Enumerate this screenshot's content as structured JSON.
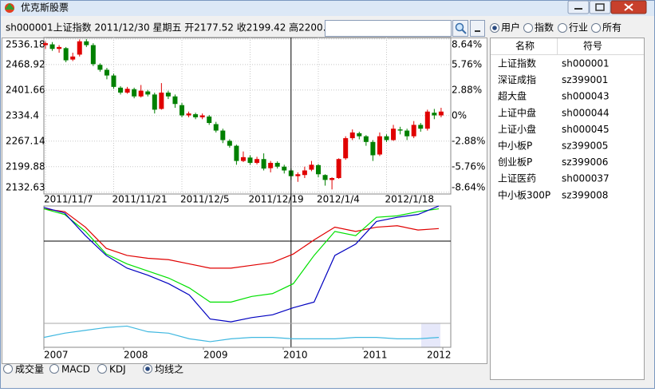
{
  "window": {
    "title": "优克斯股票"
  },
  "toolbar": {
    "quote": "sh000001上证指数  2011/12/30  星期五  开2177.52  收2199.42  高2200."
  },
  "filter": {
    "options": [
      "用户",
      "指数",
      "行业",
      "所有"
    ],
    "selected": 0
  },
  "list": {
    "columns": [
      "名称",
      "符号"
    ],
    "rows": [
      [
        "上证指数",
        "sh000001"
      ],
      [
        "深证成指",
        "sz399001"
      ],
      [
        "超大盘",
        "sh000043"
      ],
      [
        "上证中盘",
        "sh000044"
      ],
      [
        "上证小盘",
        "sh000045"
      ],
      [
        "中小板P",
        "sz399005"
      ],
      [
        "创业板P",
        "sz399006"
      ],
      [
        "上证医药",
        "sh000037"
      ],
      [
        "中小板300P",
        "sz399008"
      ]
    ]
  },
  "indicator": {
    "options": [
      "成交量",
      "MACD",
      "KDJ",
      "均线之"
    ],
    "selected": 3
  },
  "chart_data": [
    {
      "type": "candlestick",
      "up_color": "#e00000",
      "down_color": "#008000",
      "candles": [
        [
          2520,
          2530,
          2510,
          2525
        ],
        [
          2522,
          2528,
          2505,
          2510
        ],
        [
          2510,
          2520,
          2500,
          2515
        ],
        [
          2512,
          2515,
          2475,
          2480
        ],
        [
          2482,
          2500,
          2478,
          2490
        ],
        [
          2495,
          2535,
          2490,
          2530
        ],
        [
          2530,
          2536,
          2515,
          2520
        ],
        [
          2520,
          2525,
          2465,
          2470
        ],
        [
          2468,
          2472,
          2450,
          2455
        ],
        [
          2455,
          2460,
          2430,
          2440
        ],
        [
          2440,
          2445,
          2405,
          2410
        ],
        [
          2408,
          2412,
          2390,
          2395
        ],
        [
          2395,
          2410,
          2392,
          2405
        ],
        [
          2404,
          2408,
          2380,
          2385
        ],
        [
          2385,
          2415,
          2382,
          2400
        ],
        [
          2398,
          2402,
          2385,
          2390
        ],
        [
          2390,
          2395,
          2340,
          2350
        ],
        [
          2352,
          2420,
          2350,
          2395
        ],
        [
          2395,
          2400,
          2378,
          2385
        ],
        [
          2385,
          2390,
          2355,
          2365
        ],
        [
          2362,
          2368,
          2330,
          2335
        ],
        [
          2335,
          2345,
          2330,
          2340
        ],
        [
          2338,
          2342,
          2325,
          2330
        ],
        [
          2330,
          2340,
          2325,
          2335
        ],
        [
          2332,
          2336,
          2310,
          2315
        ],
        [
          2312,
          2318,
          2290,
          2295
        ],
        [
          2295,
          2300,
          2262,
          2270
        ],
        [
          2268,
          2272,
          2250,
          2255
        ],
        [
          2255,
          2258,
          2205,
          2215
        ],
        [
          2215,
          2240,
          2212,
          2225
        ],
        [
          2224,
          2230,
          2205,
          2210
        ],
        [
          2210,
          2226,
          2206,
          2220
        ],
        [
          2220,
          2235,
          2190,
          2195
        ],
        [
          2196,
          2215,
          2185,
          2210
        ],
        [
          2210,
          2214,
          2195,
          2200
        ],
        [
          2200,
          2205,
          2182,
          2190
        ],
        [
          2190,
          2195,
          2165,
          2175
        ],
        [
          2175,
          2185,
          2160,
          2180
        ],
        [
          2178,
          2200,
          2170,
          2190
        ],
        [
          2192,
          2215,
          2188,
          2205
        ],
        [
          2204,
          2207,
          2172,
          2180
        ],
        [
          2178,
          2180,
          2150,
          2165
        ],
        [
          2165,
          2172,
          2140,
          2170
        ],
        [
          2170,
          2222,
          2168,
          2220
        ],
        [
          2222,
          2280,
          2218,
          2275
        ],
        [
          2275,
          2298,
          2270,
          2290
        ],
        [
          2288,
          2292,
          2272,
          2280
        ],
        [
          2280,
          2283,
          2255,
          2265
        ],
        [
          2265,
          2270,
          2215,
          2230
        ],
        [
          2232,
          2290,
          2228,
          2280
        ],
        [
          2280,
          2285,
          2265,
          2270
        ],
        [
          2270,
          2310,
          2268,
          2300
        ],
        [
          2298,
          2305,
          2285,
          2295
        ],
        [
          2295,
          2300,
          2270,
          2280
        ],
        [
          2280,
          2320,
          2275,
          2310
        ],
        [
          2310,
          2315,
          2292,
          2300
        ],
        [
          2300,
          2350,
          2295,
          2345
        ],
        [
          2342,
          2352,
          2325,
          2335
        ],
        [
          2335,
          2355,
          2330,
          2345
        ]
      ],
      "ylim": [
        2128,
        2540
      ],
      "yticks": [
        2536.18,
        2468.92,
        2401.66,
        2334.4,
        2267.14,
        2199.88,
        2132.63
      ],
      "y2lim": [
        -8.84,
        8.81
      ],
      "y2ticks": [
        {
          "value": 8.64,
          "label": "8.64%"
        },
        {
          "value": 5.76,
          "label": "5.76%"
        },
        {
          "value": 2.88,
          "label": "2.88%"
        },
        {
          "value": 0,
          "label": "0%"
        },
        {
          "value": -2.88,
          "label": "-2.88%"
        },
        {
          "value": -5.76,
          "label": "-5.76%"
        },
        {
          "value": -8.64,
          "label": "-8.64%"
        }
      ],
      "xticks": [
        {
          "value": 0,
          "label": "2011/11/7"
        },
        {
          "value": 10,
          "label": "2011/11/21"
        },
        {
          "value": 20,
          "label": "2011/12/5"
        },
        {
          "value": 30,
          "label": "2011/12/19"
        },
        {
          "value": 40,
          "label": "2012/1/4"
        },
        {
          "value": 50,
          "label": "2012/1/18"
        }
      ],
      "grid": true
    },
    {
      "type": "line",
      "ylim": [
        0,
        100
      ],
      "xlim": [
        2007,
        2012
      ],
      "xticks": [
        2007,
        2008,
        2009,
        2010,
        2011,
        2012
      ],
      "series": [
        {
          "color": "#e00000",
          "values": [
            98,
            96,
            85,
            70,
            65,
            63,
            62,
            59,
            56,
            56,
            58,
            60,
            66,
            76,
            85,
            82,
            85,
            86,
            83,
            84
          ]
        },
        {
          "color": "#00e000",
          "values": [
            98,
            94,
            82,
            66,
            59,
            54,
            49,
            42,
            32,
            32,
            36,
            38,
            45,
            65,
            82,
            79,
            92,
            93,
            96,
            98
          ]
        },
        {
          "color": "#0000c0",
          "values": [
            99,
            95,
            79,
            65,
            56,
            51,
            45,
            37,
            20,
            18,
            21,
            23,
            28,
            32,
            65,
            73,
            89,
            92,
            94,
            100
          ]
        },
        {
          "color": "#40b8e0",
          "values": [
            7,
            10,
            12,
            14,
            15,
            11,
            10,
            6,
            4,
            6,
            7,
            7,
            6,
            6,
            6,
            7,
            7,
            6,
            6,
            7
          ]
        }
      ]
    }
  ]
}
